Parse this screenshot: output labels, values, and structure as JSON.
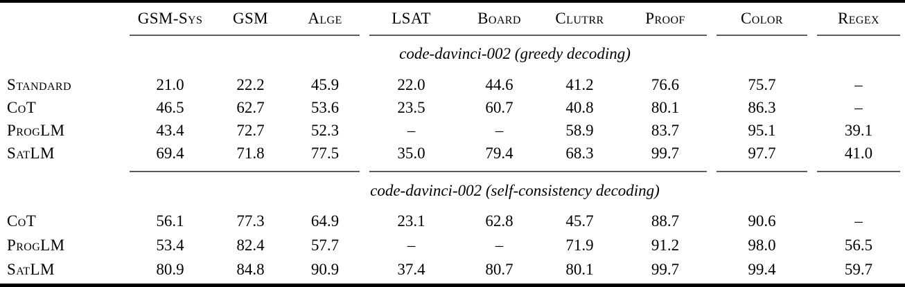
{
  "table": {
    "columns": [
      "GSM-Sys",
      "GSM",
      "Alge",
      "LSAT",
      "Board",
      "Clutrr",
      "Proof",
      "Color",
      "Regex"
    ],
    "sections": [
      {
        "header": "code-davinci-002 (greedy decoding)",
        "rows": [
          {
            "label": "Standard",
            "values": [
              "21.0",
              "22.2",
              "45.9",
              "22.0",
              "44.6",
              "41.2",
              "76.6",
              "75.7",
              "–"
            ],
            "bold": [
              false,
              false,
              false,
              false,
              false,
              false,
              false,
              false,
              false
            ]
          },
          {
            "label": "CoT",
            "values": [
              "46.5",
              "62.7",
              "53.6",
              "23.5",
              "60.7",
              "40.8",
              "80.1",
              "86.3",
              "–"
            ],
            "bold": [
              false,
              false,
              false,
              false,
              false,
              false,
              false,
              false,
              false
            ]
          },
          {
            "label": "ProgLM",
            "values": [
              "43.4",
              "72.7",
              "52.3",
              "–",
              "–",
              "58.9",
              "83.7",
              "95.1",
              "39.1"
            ],
            "bold": [
              false,
              true,
              false,
              false,
              false,
              false,
              false,
              false,
              false
            ]
          },
          {
            "label": "SatLM",
            "values": [
              "69.4",
              "71.8",
              "77.5",
              "35.0",
              "79.4",
              "68.3",
              "99.7",
              "97.7",
              "41.0"
            ],
            "bold": [
              true,
              false,
              true,
              true,
              true,
              true,
              true,
              true,
              true
            ]
          }
        ]
      },
      {
        "header": "code-davinci-002 (self-consistency decoding)",
        "rows": [
          {
            "label": "CoT",
            "values": [
              "56.1",
              "77.3",
              "64.9",
              "23.1",
              "62.8",
              "45.7",
              "88.7",
              "90.6",
              "–"
            ],
            "bold": [
              false,
              false,
              false,
              false,
              false,
              false,
              false,
              false,
              false
            ]
          },
          {
            "label": "ProgLM",
            "values": [
              "53.4",
              "82.4",
              "57.7",
              "–",
              "–",
              "71.9",
              "91.2",
              "98.0",
              "56.5"
            ],
            "bold": [
              false,
              false,
              false,
              false,
              false,
              false,
              false,
              false,
              false
            ]
          },
          {
            "label": "SatLM",
            "values": [
              "80.9",
              "84.8",
              "90.9",
              "37.4",
              "80.7",
              "80.1",
              "99.7",
              "99.4",
              "59.7"
            ],
            "bold": [
              true,
              true,
              true,
              true,
              true,
              true,
              true,
              true,
              true
            ]
          }
        ]
      }
    ]
  }
}
